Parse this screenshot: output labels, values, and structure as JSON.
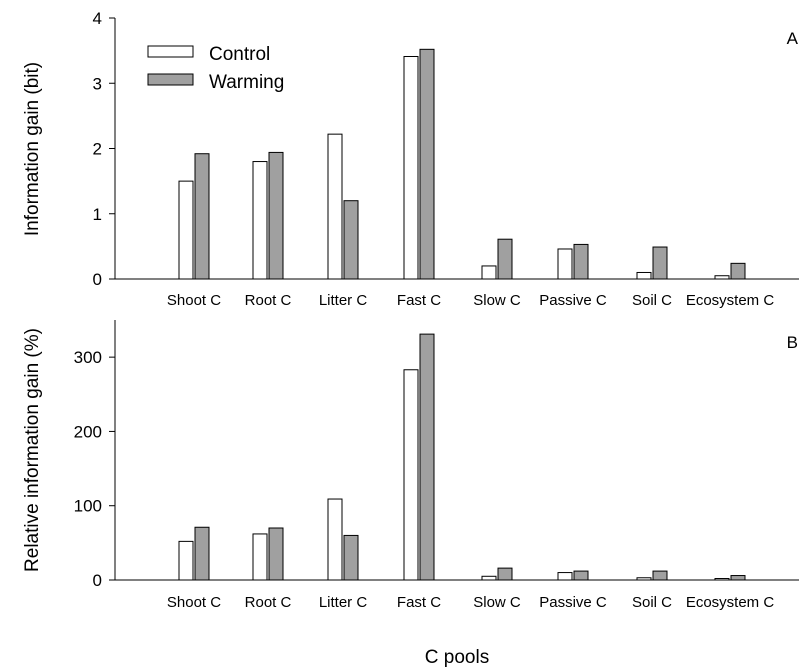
{
  "colors": {
    "control": "#ffffff",
    "warming": "#a0a0a0",
    "stroke": "#000000"
  },
  "legend": {
    "position": "top-left",
    "entries": [
      "Control",
      "Warming"
    ]
  },
  "xlabel": "C pools",
  "chart_data": [
    {
      "type": "bar",
      "panel": "A",
      "ylabel": "Information gain (bit)",
      "categories": [
        "Shoot C",
        "Root C",
        "Litter C",
        "Fast C",
        "Slow C",
        "Passive C",
        "Soil C",
        "Ecosystem C"
      ],
      "ylim": [
        0,
        4
      ],
      "yticks": [
        0,
        1,
        2,
        3,
        4
      ],
      "grid": false,
      "series": [
        {
          "name": "Control",
          "values": [
            1.5,
            1.8,
            2.22,
            3.41,
            0.2,
            0.46,
            0.1,
            0.05
          ]
        },
        {
          "name": "Warming",
          "values": [
            1.92,
            1.94,
            1.2,
            3.52,
            0.61,
            0.53,
            0.49,
            0.24
          ]
        }
      ]
    },
    {
      "type": "bar",
      "panel": "B",
      "ylabel": "Relative information gain (%)",
      "categories": [
        "Shoot C",
        "Root C",
        "Litter C",
        "Fast C",
        "Slow C",
        "Passive C",
        "Soil C",
        "Ecosystem C"
      ],
      "ylim": [
        0,
        350
      ],
      "yticks": [
        0,
        100,
        200,
        300
      ],
      "grid": false,
      "series": [
        {
          "name": "Control",
          "values": [
            52,
            62,
            109,
            283,
            5,
            10,
            3,
            2
          ]
        },
        {
          "name": "Warming",
          "values": [
            71,
            70,
            60,
            331,
            16,
            12,
            12,
            6
          ]
        }
      ]
    }
  ]
}
